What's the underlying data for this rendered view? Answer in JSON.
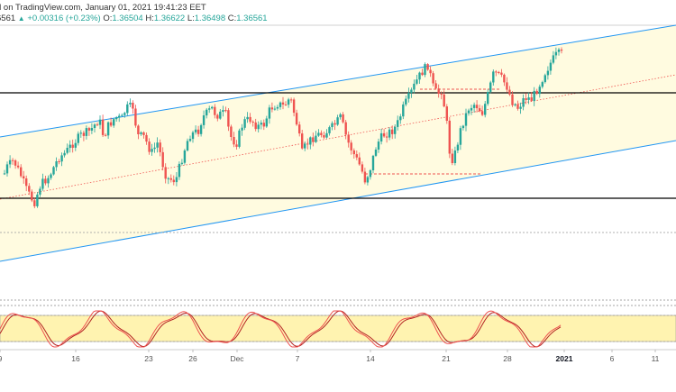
{
  "header": {
    "line1": "d on TradingView.com, January 01, 2021 19:41:23 EET",
    "price_prefix": "6561",
    "change": "+0.00316 (+0.23%)",
    "o_label": "O:",
    "o_value": "1.36504",
    "h_label": "H:",
    "h_value": "1.36622",
    "l_label": "L:",
    "l_value": "1.36498",
    "c_label": "C:",
    "c_value": "1.36561"
  },
  "colors": {
    "up": "#26a69a",
    "down": "#ef5350",
    "channel_fill": "#fffbe0",
    "channel_line": "#2196f3",
    "midline": "#ef5350",
    "level": "#000000",
    "stoch_k": "#ef5350",
    "stoch_d": "#b22222"
  },
  "chart_data": {
    "type": "candlestick",
    "time_labels": [
      "9",
      "16",
      "23",
      "26",
      "Dec",
      "7",
      "14",
      "21",
      "28",
      "2021",
      "6",
      "11"
    ],
    "candles_count": 205,
    "horizontal_levels": [
      "upper",
      "lower"
    ],
    "ascending_channel": true,
    "oscillator": {
      "type": "stochastic",
      "band": [
        20,
        80
      ],
      "lines": [
        "K",
        "D"
      ]
    },
    "last": {
      "open": 1.36504,
      "high": 1.36622,
      "low": 1.36498,
      "close": 1.36561,
      "change": 0.00316,
      "change_pct": 0.23
    }
  }
}
